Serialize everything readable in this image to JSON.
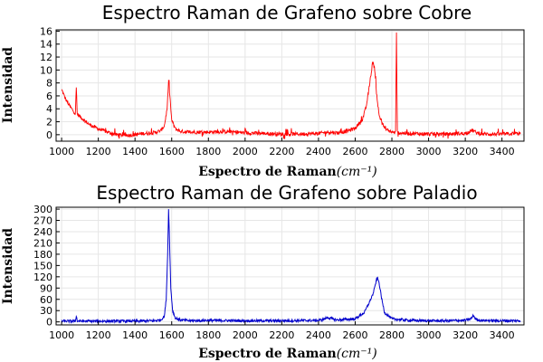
{
  "chart_data": [
    {
      "type": "line",
      "title": "Espectro Raman de Grafeno sobre Cobre",
      "xlabel": "Espectro de Raman",
      "xlabel_unit": "(cm⁻¹)",
      "ylabel": "Intensidad",
      "xlim": [
        970,
        3520
      ],
      "ylim": [
        -1,
        16.2
      ],
      "xticks": [
        1000,
        1200,
        1400,
        1600,
        1800,
        2000,
        2200,
        2400,
        2600,
        2800,
        3000,
        3200,
        3400
      ],
      "yticks": [
        0,
        2,
        4,
        6,
        8,
        10,
        12,
        14,
        16
      ],
      "grid": true,
      "legend": "none",
      "series": [
        {
          "color": "#ff0000",
          "points": [
            [
              1000,
              7.0
            ],
            [
              1020,
              5.6
            ],
            [
              1040,
              4.6
            ],
            [
              1060,
              3.8
            ],
            [
              1075,
              3.3
            ],
            [
              1080,
              7.3
            ],
            [
              1085,
              3.2
            ],
            [
              1100,
              2.8
            ],
            [
              1150,
              1.6
            ],
            [
              1200,
              0.9
            ],
            [
              1250,
              0.4
            ],
            [
              1300,
              0.0
            ],
            [
              1350,
              -0.1
            ],
            [
              1400,
              0.0
            ],
            [
              1450,
              0.2
            ],
            [
              1500,
              0.3
            ],
            [
              1540,
              0.6
            ],
            [
              1560,
              1.4
            ],
            [
              1575,
              4.0
            ],
            [
              1583,
              8.3
            ],
            [
              1590,
              6.0
            ],
            [
              1600,
              2.2
            ],
            [
              1620,
              0.9
            ],
            [
              1650,
              0.5
            ],
            [
              1700,
              0.4
            ],
            [
              1800,
              0.4
            ],
            [
              1900,
              0.5
            ],
            [
              2000,
              0.3
            ],
            [
              2100,
              0.2
            ],
            [
              2200,
              0.1
            ],
            [
              2300,
              0.1
            ],
            [
              2400,
              0.2
            ],
            [
              2450,
              0.4
            ],
            [
              2500,
              0.3
            ],
            [
              2550,
              0.5
            ],
            [
              2600,
              1.0
            ],
            [
              2640,
              2.4
            ],
            [
              2660,
              4.3
            ],
            [
              2680,
              8.0
            ],
            [
              2695,
              11.2
            ],
            [
              2705,
              10.5
            ],
            [
              2715,
              6.8
            ],
            [
              2730,
              3.0
            ],
            [
              2760,
              1.0
            ],
            [
              2800,
              0.4
            ],
            [
              2820,
              0.3
            ],
            [
              2825,
              15.8
            ],
            [
              2830,
              0.3
            ],
            [
              2900,
              0.2
            ],
            [
              3000,
              0.1
            ],
            [
              3100,
              0.1
            ],
            [
              3200,
              0.2
            ],
            [
              3240,
              0.7
            ],
            [
              3260,
              0.3
            ],
            [
              3300,
              0.1
            ],
            [
              3400,
              0.1
            ],
            [
              3500,
              0.2
            ]
          ]
        }
      ]
    },
    {
      "type": "line",
      "title": "Espectro Raman de Grafeno sobre Paladio",
      "xlabel": "Espectro de Raman",
      "xlabel_unit": "(cm⁻¹)",
      "ylabel": "Intensidad",
      "xlim": [
        970,
        3520
      ],
      "ylim": [
        -8,
        305
      ],
      "xticks": [
        1000,
        1200,
        1400,
        1600,
        1800,
        2000,
        2200,
        2400,
        2600,
        2800,
        3000,
        3200,
        3400
      ],
      "yticks": [
        0,
        30,
        60,
        90,
        120,
        150,
        180,
        210,
        240,
        270,
        300
      ],
      "grid": true,
      "legend": "none",
      "series": [
        {
          "color": "#0000cc",
          "points": [
            [
              1000,
              2
            ],
            [
              1050,
              2
            ],
            [
              1075,
              2
            ],
            [
              1080,
              17
            ],
            [
              1085,
              2
            ],
            [
              1200,
              2
            ],
            [
              1300,
              2
            ],
            [
              1400,
              2
            ],
            [
              1500,
              3
            ],
            [
              1540,
              5
            ],
            [
              1560,
              15
            ],
            [
              1570,
              60
            ],
            [
              1578,
              180
            ],
            [
              1583,
              300
            ],
            [
              1588,
              220
            ],
            [
              1595,
              90
            ],
            [
              1605,
              30
            ],
            [
              1620,
              10
            ],
            [
              1650,
              5
            ],
            [
              1700,
              3
            ],
            [
              1800,
              4
            ],
            [
              2000,
              3
            ],
            [
              2200,
              3
            ],
            [
              2400,
              4
            ],
            [
              2430,
              7
            ],
            [
              2450,
              12
            ],
            [
              2470,
              9
            ],
            [
              2500,
              5
            ],
            [
              2600,
              8
            ],
            [
              2650,
              25
            ],
            [
              2680,
              55
            ],
            [
              2700,
              78
            ],
            [
              2710,
              100
            ],
            [
              2720,
              118
            ],
            [
              2730,
              105
            ],
            [
              2745,
              60
            ],
            [
              2760,
              25
            ],
            [
              2800,
              8
            ],
            [
              2900,
              4
            ],
            [
              3000,
              3
            ],
            [
              3100,
              3
            ],
            [
              3200,
              4
            ],
            [
              3230,
              8
            ],
            [
              3245,
              17
            ],
            [
              3255,
              8
            ],
            [
              3280,
              4
            ],
            [
              3400,
              3
            ],
            [
              3500,
              3
            ]
          ]
        }
      ]
    }
  ]
}
